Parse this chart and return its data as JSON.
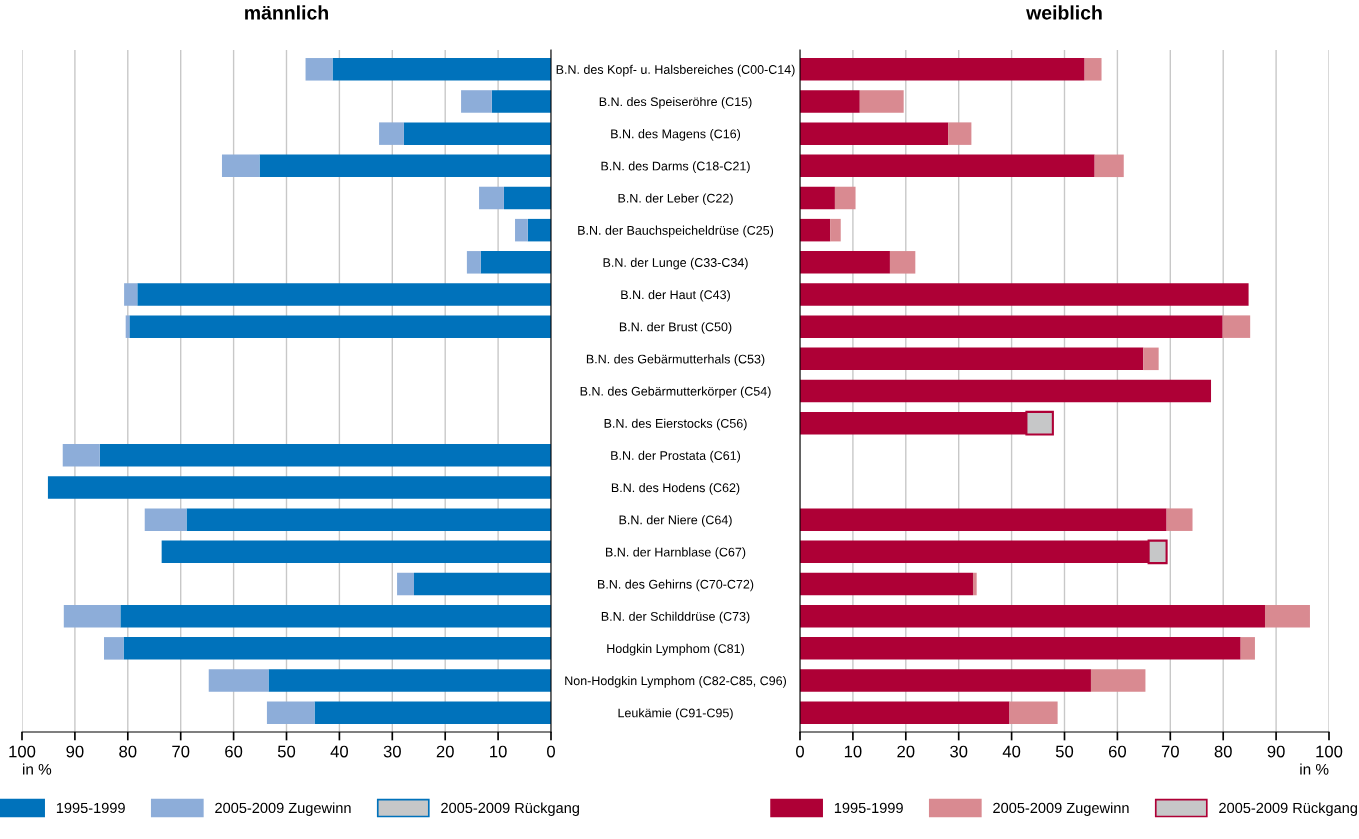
{
  "chart_data": [
    {
      "type": "bar",
      "orientation": "horizontal",
      "stacked": true,
      "title": "männlich",
      "xlabel": "in %",
      "categories": [
        "B.N. des Kopf- u. Halsbereiches (C00-C14)",
        "B.N. des Speiseröhre (C15)",
        "B.N. des Magens (C16)",
        "B.N. des Darms (C18-C21)",
        "B.N. der Leber (C22)",
        "B.N. der Bauchspeicheldrüse (C25)",
        "B.N. der Lunge (C33-C34)",
        "B.N. der Haut (C43)",
        "B.N. der Brust (C50)",
        "B.N. des Gebärmutterhals (C53)",
        "B.N. des Gebärmutterkörper (C54)",
        "B.N. des Eierstocks (C56)",
        "B.N. der Prostata (C61)",
        "B.N. des Hodens (C62)",
        "B.N. der Niere (C64)",
        "B.N. der Harnblase (C67)",
        "B.N. des Gehirns (C70-C72)",
        "B.N. der Schilddrüse (C73)",
        "Hodgkin Lymphom (C81)",
        "Non-Hodgkin Lymphom (C82-C85, C96)",
        "Leukämie (C91-C95)"
      ],
      "series": [
        {
          "name": "1995-1999",
          "color": "#0072bb",
          "values": [
            41.3,
            11.2,
            27.8,
            55.1,
            8.9,
            4.4,
            13.3,
            78.2,
            79.7,
            null,
            null,
            null,
            85.3,
            95.1,
            68.9,
            73.6,
            25.9,
            81.4,
            80.8,
            53.4,
            44.7
          ]
        },
        {
          "name": "2005-2009 Zugewinn",
          "color": "#8dadd9",
          "values": [
            5.1,
            5.8,
            4.7,
            7.1,
            4.7,
            2.4,
            2.6,
            2.5,
            0.7,
            null,
            null,
            null,
            7.0,
            null,
            7.9,
            null,
            3.2,
            10.7,
            3.7,
            11.3,
            9.0
          ]
        },
        {
          "name": "2005-2009 Rückgang",
          "color": "#c6c7c8",
          "values": [
            null,
            null,
            null,
            null,
            null,
            null,
            null,
            null,
            null,
            null,
            null,
            null,
            null,
            null,
            null,
            null,
            null,
            null,
            null,
            null,
            null
          ]
        }
      ],
      "xlim": [
        100,
        0
      ],
      "xticks": [
        0,
        10,
        20,
        30,
        40,
        50,
        60,
        70,
        80,
        90,
        100
      ],
      "grid": "x",
      "legend": "bottom"
    },
    {
      "type": "bar",
      "orientation": "horizontal",
      "stacked": true,
      "title": "weiblich",
      "xlabel": "in %",
      "categories": [
        null,
        null,
        null,
        null,
        null,
        null,
        null,
        null,
        null,
        null,
        null,
        null,
        null,
        null,
        null,
        null,
        null,
        null,
        null,
        null,
        null
      ],
      "series": [
        {
          "name": "1995-1999",
          "color": "#ae0036",
          "values": [
            53.8,
            11.3,
            28.0,
            55.7,
            6.6,
            5.7,
            17.0,
            84.8,
            79.9,
            64.9,
            77.7,
            42.8,
            null,
            null,
            69.3,
            65.9,
            32.7,
            87.9,
            83.3,
            55.0,
            39.6
          ]
        },
        {
          "name": "2005-2009 Zugewinn",
          "color": "#d98a91",
          "values": [
            3.2,
            8.3,
            4.4,
            5.5,
            3.9,
            2.0,
            4.8,
            null,
            5.2,
            2.9,
            null,
            null,
            null,
            null,
            4.9,
            null,
            0.7,
            8.5,
            2.7,
            10.3,
            9.1
          ]
        },
        {
          "name": "2005-2009 Rückgang",
          "color": "#c6c7c8",
          "values": [
            null,
            null,
            null,
            null,
            null,
            null,
            null,
            null,
            null,
            null,
            null,
            5.0,
            null,
            null,
            null,
            3.4,
            null,
            null,
            null,
            null,
            null
          ]
        }
      ],
      "xlim": [
        0,
        100
      ],
      "xticks": [
        0,
        10,
        20,
        30,
        40,
        50,
        60,
        70,
        80,
        90,
        100
      ],
      "grid": "x",
      "legend": "bottom",
      "tick_labels": "x"
    }
  ]
}
